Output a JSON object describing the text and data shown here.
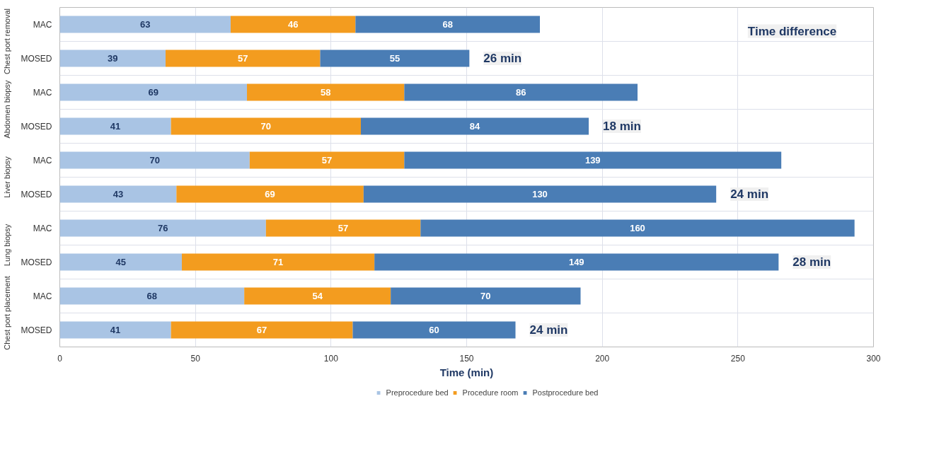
{
  "chart_data": {
    "type": "bar",
    "orientation": "horizontal",
    "stacked": true,
    "data_labels": true,
    "categories": [
      "MAC",
      "MOSED",
      "MAC",
      "MOSED",
      "MAC",
      "MOSED",
      "MAC",
      "MOSED",
      "MAC",
      "MOSED"
    ],
    "series": [
      {
        "name": "Preprocedure bed",
        "color": "#a9c4e4",
        "values": [
          63,
          39,
          69,
          41,
          70,
          43,
          76,
          45,
          68,
          41
        ]
      },
      {
        "name": "Procedure room",
        "color": "#f39c1f",
        "values": [
          46,
          57,
          58,
          70,
          57,
          69,
          57,
          71,
          54,
          67
        ]
      },
      {
        "name": "Postprocedure bed",
        "color": "#4a7db5",
        "values": [
          68,
          55,
          86,
          84,
          139,
          130,
          160,
          149,
          70,
          60
        ]
      }
    ],
    "xlabel": "Time (min)",
    "xlim": [
      0,
      300
    ],
    "xticks": [
      0,
      50,
      100,
      150,
      200,
      250,
      300
    ],
    "grid": true,
    "legend": "bottom",
    "annotations": [
      "Time difference",
      "Chest port removal",
      "Abdomen biopsy",
      "Liver biopsy",
      "Lung biopsy",
      "Chest port placement",
      "26 min",
      "18 min",
      "24 min",
      "28 min",
      "24 min"
    ]
  }
}
